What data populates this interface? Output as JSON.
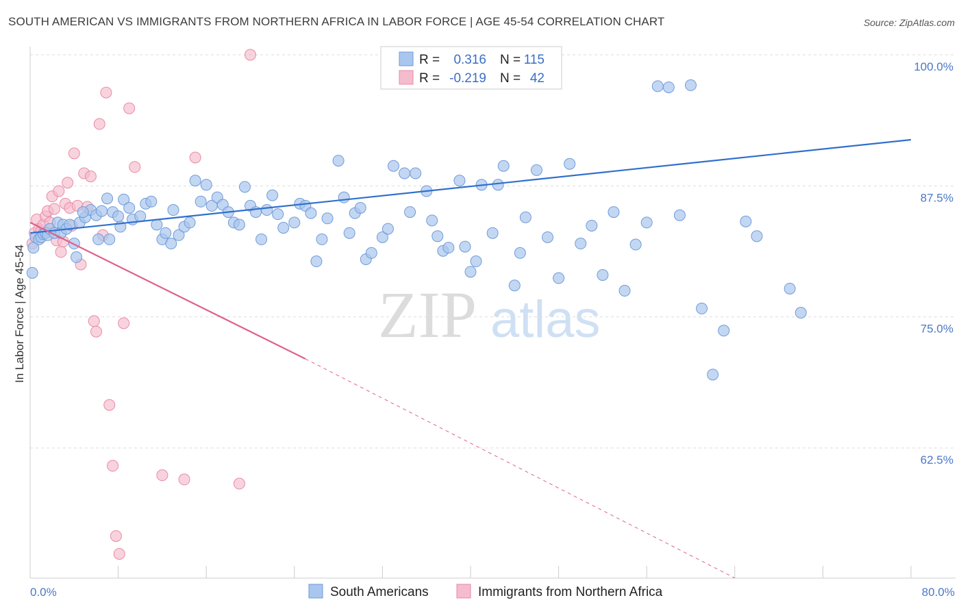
{
  "title": "SOUTH AMERICAN VS IMMIGRANTS FROM NORTHERN AFRICA IN LABOR FORCE | AGE 45-54 CORRELATION CHART",
  "source": "Source: ZipAtlas.com",
  "watermark": {
    "zip": "ZIP",
    "atlas": "atlas"
  },
  "colors": {
    "blue_fill": "#a9c6ee",
    "blue_stroke": "#6f9bd8",
    "blue_line": "#2f6fcd",
    "pink_fill": "#f5bccd",
    "pink_stroke": "#e88aa6",
    "pink_line": "#e0608c",
    "axis_text": "#4a78c8",
    "grid": "#dddddd"
  },
  "legend_stats": {
    "r_label": "R =",
    "n_label": "N =",
    "rows": [
      {
        "r": "0.316",
        "n": "115",
        "color": "blue"
      },
      {
        "r": "-0.219",
        "n": "42",
        "color": "pink"
      }
    ]
  },
  "chart_data": {
    "type": "scatter",
    "xlabel": "",
    "ylabel": "In Labor Force | Age 45-54",
    "xlim": [
      0,
      80
    ],
    "ylim": [
      50,
      100
    ],
    "x_tick_labels": [
      "0.0%",
      "80.0%"
    ],
    "y_ticks": [
      62.5,
      75.0,
      87.5,
      100.0
    ],
    "y_tick_labels": [
      "62.5%",
      "75.0%",
      "87.5%",
      "100.0%"
    ],
    "grid": true,
    "legend_position": "bottom",
    "series": [
      {
        "name": "South Americans",
        "color": "#a9c6ee",
        "trend": {
          "x": [
            0,
            80
          ],
          "y": [
            83.0,
            91.9
          ]
        },
        "points": [
          [
            0.2,
            79.2
          ],
          [
            0.3,
            81.6
          ],
          [
            0.5,
            82.6
          ],
          [
            0.8,
            82.4
          ],
          [
            1.0,
            82.6
          ],
          [
            1.2,
            82.9
          ],
          [
            1.4,
            83.0
          ],
          [
            1.6,
            82.8
          ],
          [
            1.8,
            83.4
          ],
          [
            2.2,
            83.0
          ],
          [
            2.5,
            84.0
          ],
          [
            2.8,
            83.0
          ],
          [
            3.0,
            83.8
          ],
          [
            3.3,
            83.4
          ],
          [
            3.6,
            83.8
          ],
          [
            4.0,
            82.0
          ],
          [
            4.2,
            80.7
          ],
          [
            4.5,
            84.0
          ],
          [
            5.0,
            84.5
          ],
          [
            5.5,
            85.2
          ],
          [
            6.0,
            84.7
          ],
          [
            6.5,
            85.1
          ],
          [
            7.0,
            86.3
          ],
          [
            7.5,
            85.0
          ],
          [
            8.0,
            84.6
          ],
          [
            8.5,
            86.2
          ],
          [
            9.0,
            85.4
          ],
          [
            4.8,
            85.0
          ],
          [
            6.2,
            82.4
          ],
          [
            7.2,
            82.4
          ],
          [
            8.2,
            83.6
          ],
          [
            9.3,
            84.3
          ],
          [
            10.0,
            84.6
          ],
          [
            10.5,
            85.8
          ],
          [
            11.0,
            86.0
          ],
          [
            11.5,
            83.8
          ],
          [
            12.0,
            82.4
          ],
          [
            12.3,
            83.0
          ],
          [
            12.8,
            82.0
          ],
          [
            13.0,
            85.2
          ],
          [
            13.5,
            82.8
          ],
          [
            14.0,
            83.6
          ],
          [
            14.5,
            84.0
          ],
          [
            15.0,
            88.0
          ],
          [
            15.5,
            86.0
          ],
          [
            16.0,
            87.6
          ],
          [
            16.5,
            85.6
          ],
          [
            17.0,
            86.4
          ],
          [
            17.5,
            85.7
          ],
          [
            18.0,
            85.0
          ],
          [
            18.5,
            84.0
          ],
          [
            19.0,
            83.8
          ],
          [
            19.5,
            87.4
          ],
          [
            20.0,
            85.6
          ],
          [
            20.5,
            85.0
          ],
          [
            21.0,
            82.4
          ],
          [
            21.5,
            85.2
          ],
          [
            22.0,
            86.6
          ],
          [
            22.5,
            84.8
          ],
          [
            23.0,
            83.5
          ],
          [
            24.0,
            84.0
          ],
          [
            24.5,
            85.8
          ],
          [
            25.0,
            85.6
          ],
          [
            25.5,
            84.9
          ],
          [
            26.0,
            80.3
          ],
          [
            26.5,
            82.4
          ],
          [
            27.0,
            84.4
          ],
          [
            28.0,
            89.9
          ],
          [
            28.5,
            86.4
          ],
          [
            29.0,
            83.0
          ],
          [
            29.5,
            84.9
          ],
          [
            30.0,
            85.4
          ],
          [
            30.5,
            80.5
          ],
          [
            31.0,
            81.1
          ],
          [
            32.0,
            82.6
          ],
          [
            32.5,
            83.4
          ],
          [
            33.0,
            89.4
          ],
          [
            34.0,
            88.7
          ],
          [
            34.5,
            85.0
          ],
          [
            35.0,
            88.7
          ],
          [
            36.0,
            87.0
          ],
          [
            36.5,
            84.2
          ],
          [
            37.0,
            82.7
          ],
          [
            37.5,
            81.3
          ],
          [
            38.0,
            81.6
          ],
          [
            39.0,
            88.0
          ],
          [
            39.5,
            81.7
          ],
          [
            40.0,
            79.3
          ],
          [
            40.5,
            80.3
          ],
          [
            41.0,
            87.6
          ],
          [
            42.0,
            83.0
          ],
          [
            42.5,
            87.6
          ],
          [
            43.0,
            89.4
          ],
          [
            44.0,
            78.0
          ],
          [
            44.5,
            81.1
          ],
          [
            45.0,
            84.5
          ],
          [
            46.0,
            89.0
          ],
          [
            47.0,
            82.6
          ],
          [
            48.0,
            78.7
          ],
          [
            49.0,
            89.6
          ],
          [
            50.0,
            82.0
          ],
          [
            51.0,
            83.7
          ],
          [
            52.0,
            79.0
          ],
          [
            53.0,
            85.0
          ],
          [
            54.0,
            77.5
          ],
          [
            55.0,
            81.9
          ],
          [
            56.0,
            84.0
          ],
          [
            57.0,
            97.0
          ],
          [
            58.0,
            96.9
          ],
          [
            59.0,
            84.7
          ],
          [
            60.0,
            97.1
          ],
          [
            61.0,
            75.8
          ],
          [
            62.0,
            69.5
          ],
          [
            63.0,
            73.7
          ],
          [
            65.0,
            84.1
          ],
          [
            66.0,
            82.7
          ],
          [
            69.0,
            77.7
          ],
          [
            70.0,
            75.4
          ]
        ]
      },
      {
        "name": "Immigrants from Northern Africa",
        "color": "#f5bccd",
        "trend": {
          "x": [
            0,
            25
          ],
          "y": [
            84.0,
            71.0
          ]
        },
        "trend_dashed": {
          "x": [
            25,
            64
          ],
          "y": [
            71.0,
            50.1
          ]
        },
        "points": [
          [
            0.2,
            82.0
          ],
          [
            0.4,
            83.0
          ],
          [
            0.6,
            84.3
          ],
          [
            0.8,
            83.4
          ],
          [
            1.0,
            83.2
          ],
          [
            1.2,
            83.8
          ],
          [
            1.4,
            84.6
          ],
          [
            1.6,
            85.1
          ],
          [
            1.8,
            84.0
          ],
          [
            2.0,
            86.5
          ],
          [
            2.2,
            85.3
          ],
          [
            2.4,
            82.3
          ],
          [
            2.6,
            87.0
          ],
          [
            2.8,
            81.2
          ],
          [
            3.0,
            82.2
          ],
          [
            3.2,
            85.8
          ],
          [
            3.4,
            87.8
          ],
          [
            3.6,
            85.4
          ],
          [
            3.8,
            83.7
          ],
          [
            4.0,
            90.6
          ],
          [
            4.3,
            85.6
          ],
          [
            4.6,
            80.0
          ],
          [
            4.9,
            88.7
          ],
          [
            5.2,
            85.5
          ],
          [
            5.5,
            88.4
          ],
          [
            5.8,
            74.6
          ],
          [
            6.0,
            73.6
          ],
          [
            6.3,
            93.4
          ],
          [
            6.6,
            82.8
          ],
          [
            6.9,
            96.4
          ],
          [
            7.2,
            66.6
          ],
          [
            7.5,
            60.8
          ],
          [
            7.8,
            54.1
          ],
          [
            8.1,
            52.4
          ],
          [
            8.5,
            74.4
          ],
          [
            9.0,
            94.9
          ],
          [
            9.5,
            89.3
          ],
          [
            12.0,
            59.9
          ],
          [
            14.0,
            59.5
          ],
          [
            15.0,
            90.2
          ],
          [
            19.0,
            59.1
          ],
          [
            20.0,
            100.0
          ]
        ]
      }
    ]
  }
}
